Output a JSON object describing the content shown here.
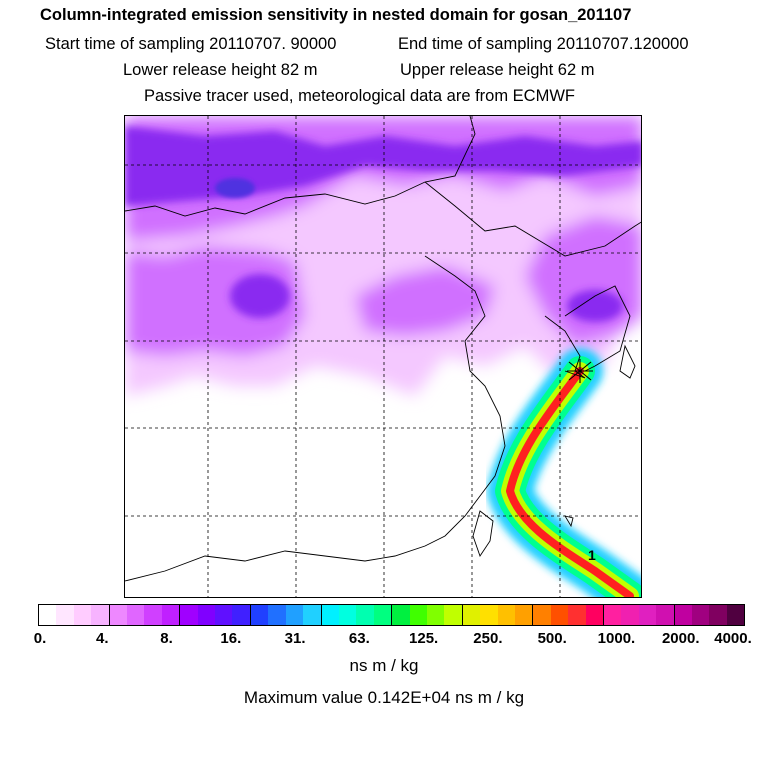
{
  "header": {
    "title": "Column-integrated emission sensitivity in nested domain for gosan_201107",
    "start_time": "Start time of sampling 20110707. 90000",
    "end_time": "End time of sampling 20110707.120000",
    "lower_height": "Lower release height   82 m",
    "upper_height": "Upper release height   62 m",
    "info": "Passive tracer used, meteorological data are from ECMWF"
  },
  "map": {
    "annotation": "1",
    "receptor_marker": "star",
    "grid_lines": true
  },
  "legend": {
    "ticks": [
      "0.",
      "4.",
      "8.",
      "16.",
      "31.",
      "63.",
      "125.",
      "250.",
      "500.",
      "1000.",
      "2000.",
      "4000."
    ],
    "colors": [
      "#ffffff",
      "#ffe6ff",
      "#ffccff",
      "#f7b3ff",
      "#ee88ff",
      "#e066ff",
      "#d040ff",
      "#c020ff",
      "#a000ff",
      "#8000ff",
      "#6010ff",
      "#4020ff",
      "#2040ff",
      "#2070ff",
      "#20a0ff",
      "#20d0ff",
      "#00f0ff",
      "#00ffe0",
      "#00ffb0",
      "#00ff80",
      "#00f040",
      "#40ff00",
      "#80ff00",
      "#c0ff00",
      "#e0f000",
      "#ffe000",
      "#ffc000",
      "#ffa000",
      "#ff8000",
      "#ff5000",
      "#ff3030",
      "#ff0060",
      "#ff20a0",
      "#f020b0",
      "#e020c0",
      "#d010b0",
      "#c000a0",
      "#a00080",
      "#800060",
      "#500040"
    ],
    "units": "ns m / kg",
    "max_value": "Maximum value  0.142E+04 ns m / kg"
  },
  "colors": {
    "low_fill": "#f4c8ff",
    "mid_fill": "#d070ff",
    "high_fill": "#8a2cf0",
    "deep_fill": "#5030e0",
    "plume_outer": "#20d0ff",
    "plume_mid": "#c0ff00",
    "plume_core": "#ff2020"
  }
}
